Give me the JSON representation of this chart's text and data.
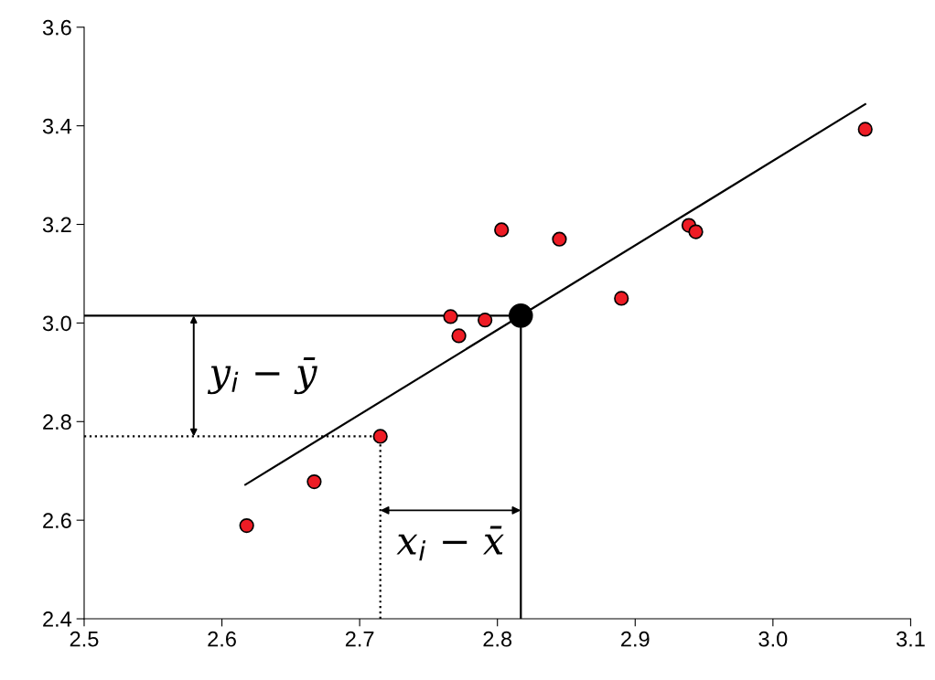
{
  "chart_data": {
    "type": "scatter",
    "xlim": [
      2.5,
      3.1
    ],
    "ylim": [
      2.4,
      3.6
    ],
    "xticks": [
      2.5,
      2.6,
      2.7,
      2.8,
      2.9,
      {
        "value": 3.0,
        "label": "3.0"
      },
      3.1
    ],
    "yticks": [
      2.4,
      2.6,
      2.8,
      {
        "value": 3.0,
        "label": "3.0"
      },
      3.2,
      3.4,
      3.6
    ],
    "grid": false,
    "series": [
      {
        "marker": "circle",
        "color": "#ee1c25",
        "x": [
          2.618,
          2.667,
          2.715,
          2.766,
          2.772,
          2.791,
          2.803,
          2.845,
          2.89,
          2.939,
          2.944,
          3.067
        ],
        "values": [
          2.589,
          2.678,
          2.77,
          3.013,
          2.974,
          3.006,
          3.189,
          3.17,
          3.05,
          3.198,
          3.185,
          3.393
        ]
      },
      {
        "marker": "circle",
        "color": "#000000",
        "x": [
          2.817
        ],
        "values": [
          3.015
        ]
      },
      {
        "type": "line",
        "color": "#000000",
        "line_style": "solid",
        "x": [
          2.617,
          3.067
        ],
        "values": [
          2.672,
          3.444
        ]
      },
      {
        "type": "line",
        "color": "#000000",
        "line_style": "solid",
        "x": [
          2.5,
          2.817
        ],
        "values": [
          3.015,
          3.015
        ]
      },
      {
        "type": "line",
        "color": "#000000",
        "line_style": "solid",
        "x": [
          2.817,
          2.817
        ],
        "values": [
          2.4,
          3.015
        ]
      },
      {
        "type": "line",
        "color": "#000000",
        "line_style": "dotted",
        "x": [
          2.5,
          2.715
        ],
        "values": [
          2.77,
          2.77
        ]
      },
      {
        "type": "line",
        "color": "#000000",
        "line_style": "dotted",
        "x": [
          2.715,
          2.715
        ],
        "values": [
          2.4,
          2.77
        ]
      }
    ],
    "annotations": [
      "y$_{i}$ − ȳ",
      {
        "text": "x$_{i}$ − x̄",
        "x": 2.817,
        "y": 2.62
      }
    ]
  }
}
